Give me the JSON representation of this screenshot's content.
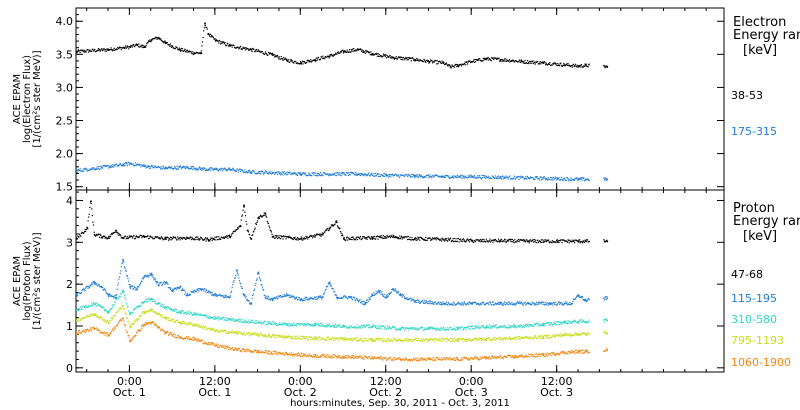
{
  "chart_data": {
    "type": "scatter",
    "xlabel": "hours:minutes, Sep. 30, 2011 - Oct. 3, 2011",
    "x_tick_times": [
      "0:00",
      "12:00",
      "0:00",
      "12:00",
      "0:00",
      "12:00"
    ],
    "x_tick_dates": [
      "Oct. 1",
      "Oct. 1",
      "Oct. 2",
      "Oct. 2",
      "Oct. 3",
      "Oct. 3"
    ],
    "x_tick_hours": [
      0,
      12,
      24,
      36,
      48,
      60
    ],
    "x_range_hours": [
      -7.5,
      83.5
    ],
    "panels": [
      {
        "name": "electron",
        "ylabel": [
          "ACE EPAM",
          "log(Electron Flux)",
          "[1/(cm²s ster MeV)]"
        ],
        "ylim": [
          1.45,
          4.2
        ],
        "yticks": [
          1.5,
          2.0,
          2.5,
          3.0,
          3.5,
          4.0
        ],
        "ytick_labels": [
          "1.5",
          "2.0",
          "2.5",
          "3.0",
          "3.5",
          "4.0"
        ],
        "legend_title": [
          "Electron",
          "Energy ran"
        ],
        "legend_unit": "[keV]",
        "series": [
          {
            "name": "38-53",
            "color": "#000000",
            "points": [
              [
                -7.5,
                3.55
              ],
              [
                -3,
                3.58
              ],
              [
                0,
                3.62
              ],
              [
                1,
                3.65
              ],
              [
                2,
                3.62
              ],
              [
                3,
                3.73
              ],
              [
                4,
                3.76
              ],
              [
                5,
                3.68
              ],
              [
                7,
                3.58
              ],
              [
                9,
                3.53
              ],
              [
                10,
                3.53
              ],
              [
                10.5,
                3.98
              ],
              [
                11,
                3.82
              ],
              [
                12,
                3.72
              ],
              [
                14,
                3.64
              ],
              [
                17,
                3.58
              ],
              [
                20,
                3.5
              ],
              [
                22,
                3.42
              ],
              [
                24,
                3.38
              ],
              [
                26,
                3.43
              ],
              [
                28,
                3.48
              ],
              [
                30,
                3.55
              ],
              [
                32,
                3.58
              ],
              [
                34,
                3.52
              ],
              [
                37,
                3.46
              ],
              [
                40,
                3.43
              ],
              [
                42,
                3.4
              ],
              [
                44,
                3.38
              ],
              [
                45,
                3.32
              ],
              [
                46,
                3.34
              ],
              [
                48,
                3.4
              ],
              [
                50,
                3.44
              ],
              [
                52,
                3.43
              ],
              [
                55,
                3.4
              ],
              [
                58,
                3.38
              ],
              [
                61,
                3.35
              ],
              [
                63,
                3.33
              ],
              [
                64,
                3.34
              ],
              [
                67,
                3.32
              ]
            ]
          },
          {
            "name": "175-315",
            "color": "#1f7bd6",
            "points": [
              [
                -7.5,
                1.75
              ],
              [
                -4,
                1.8
              ],
              [
                -1,
                1.84
              ],
              [
                0,
                1.86
              ],
              [
                2,
                1.82
              ],
              [
                5,
                1.79
              ],
              [
                8,
                1.8
              ],
              [
                11,
                1.77
              ],
              [
                14,
                1.77
              ],
              [
                17,
                1.73
              ],
              [
                20,
                1.72
              ],
              [
                24,
                1.7
              ],
              [
                28,
                1.7
              ],
              [
                32,
                1.7
              ],
              [
                36,
                1.68
              ],
              [
                40,
                1.67
              ],
              [
                44,
                1.66
              ],
              [
                48,
                1.66
              ],
              [
                52,
                1.65
              ],
              [
                56,
                1.64
              ],
              [
                60,
                1.63
              ],
              [
                63,
                1.62
              ],
              [
                64,
                1.62
              ],
              [
                67,
                1.62
              ]
            ]
          }
        ]
      },
      {
        "name": "proton",
        "ylabel": [
          "ACE EPAM",
          "log(Proton Flux)",
          "[1/(cm²s ster MeV)]"
        ],
        "ylim": [
          -0.1,
          4.25
        ],
        "yticks": [
          0,
          1,
          2,
          3,
          4
        ],
        "ytick_labels": [
          "0",
          "1",
          "2",
          "3",
          "4"
        ],
        "legend_title": [
          "Proton",
          "Energy ran"
        ],
        "legend_unit": "[keV]",
        "series": [
          {
            "name": "47-68",
            "color": "#000000",
            "points": [
              [
                -7.5,
                3.1
              ],
              [
                -6,
                3.35
              ],
              [
                -5.5,
                4.0
              ],
              [
                -5,
                3.2
              ],
              [
                -3,
                3.12
              ],
              [
                -2,
                3.3
              ],
              [
                -1,
                3.12
              ],
              [
                2,
                3.15
              ],
              [
                5,
                3.1
              ],
              [
                8,
                3.12
              ],
              [
                11,
                3.08
              ],
              [
                14,
                3.15
              ],
              [
                15.5,
                3.4
              ],
              [
                16,
                3.9
              ],
              [
                16.5,
                3.3
              ],
              [
                17,
                3.1
              ],
              [
                18,
                3.6
              ],
              [
                19,
                3.7
              ],
              [
                20,
                3.15
              ],
              [
                24,
                3.1
              ],
              [
                27,
                3.2
              ],
              [
                28,
                3.35
              ],
              [
                29,
                3.5
              ],
              [
                30,
                3.1
              ],
              [
                34,
                3.12
              ],
              [
                37,
                3.15
              ],
              [
                40,
                3.1
              ],
              [
                44,
                3.08
              ],
              [
                48,
                3.05
              ],
              [
                52,
                3.05
              ],
              [
                56,
                3.04
              ],
              [
                60,
                3.04
              ],
              [
                63,
                3.04
              ],
              [
                64,
                3.04
              ],
              [
                67,
                3.04
              ]
            ]
          },
          {
            "name": "115-195",
            "color": "#1f7bd6",
            "points": [
              [
                -7.5,
                1.75
              ],
              [
                -5,
                2.05
              ],
              [
                -4,
                1.95
              ],
              [
                -3,
                1.75
              ],
              [
                -2,
                1.7
              ],
              [
                -1,
                2.6
              ],
              [
                0,
                1.95
              ],
              [
                1,
                1.9
              ],
              [
                2,
                2.2
              ],
              [
                3,
                2.25
              ],
              [
                4,
                2.0
              ],
              [
                5,
                2.05
              ],
              [
                6,
                1.85
              ],
              [
                7,
                1.95
              ],
              [
                8,
                1.75
              ],
              [
                10,
                1.9
              ],
              [
                12,
                1.75
              ],
              [
                14,
                1.7
              ],
              [
                15,
                2.35
              ],
              [
                16,
                1.75
              ],
              [
                17,
                1.55
              ],
              [
                18,
                2.3
              ],
              [
                19,
                1.7
              ],
              [
                20,
                1.65
              ],
              [
                22,
                1.75
              ],
              [
                24,
                1.65
              ],
              [
                27,
                1.7
              ],
              [
                28,
                2.05
              ],
              [
                29,
                1.7
              ],
              [
                31,
                1.7
              ],
              [
                33,
                1.55
              ],
              [
                34,
                1.75
              ],
              [
                35,
                1.85
              ],
              [
                36,
                1.7
              ],
              [
                37,
                1.9
              ],
              [
                38,
                1.75
              ],
              [
                40,
                1.6
              ],
              [
                44,
                1.55
              ],
              [
                48,
                1.55
              ],
              [
                52,
                1.55
              ],
              [
                56,
                1.55
              ],
              [
                59,
                1.55
              ],
              [
                62,
                1.55
              ],
              [
                63,
                1.75
              ],
              [
                64,
                1.62
              ],
              [
                67,
                1.68
              ]
            ]
          },
          {
            "name": "310-580",
            "color": "#2fd6c6",
            "points": [
              [
                -7.5,
                1.4
              ],
              [
                -5,
                1.55
              ],
              [
                -3,
                1.35
              ],
              [
                -1,
                1.85
              ],
              [
                0,
                1.3
              ],
              [
                2,
                1.6
              ],
              [
                3,
                1.65
              ],
              [
                5,
                1.45
              ],
              [
                7,
                1.35
              ],
              [
                9,
                1.3
              ],
              [
                12,
                1.2
              ],
              [
                15,
                1.15
              ],
              [
                18,
                1.1
              ],
              [
                22,
                1.05
              ],
              [
                26,
                1.05
              ],
              [
                30,
                1.0
              ],
              [
                34,
                1.0
              ],
              [
                38,
                0.95
              ],
              [
                42,
                0.95
              ],
              [
                46,
                0.95
              ],
              [
                50,
                1.0
              ],
              [
                54,
                1.0
              ],
              [
                58,
                1.05
              ],
              [
                61,
                1.1
              ],
              [
                63,
                1.12
              ],
              [
                64,
                1.12
              ],
              [
                67,
                1.15
              ]
            ]
          },
          {
            "name": "795-1193",
            "color": "#c8dc1a",
            "points": [
              [
                -7.5,
                1.15
              ],
              [
                -5,
                1.3
              ],
              [
                -3,
                1.1
              ],
              [
                -1,
                1.5
              ],
              [
                0,
                1.0
              ],
              [
                2,
                1.35
              ],
              [
                3,
                1.4
              ],
              [
                5,
                1.2
              ],
              [
                7,
                1.1
              ],
              [
                9,
                1.05
              ],
              [
                12,
                0.9
              ],
              [
                15,
                0.85
              ],
              [
                18,
                0.8
              ],
              [
                22,
                0.75
              ],
              [
                26,
                0.72
              ],
              [
                30,
                0.7
              ],
              [
                34,
                0.68
              ],
              [
                38,
                0.68
              ],
              [
                42,
                0.68
              ],
              [
                46,
                0.68
              ],
              [
                50,
                0.7
              ],
              [
                54,
                0.72
              ],
              [
                58,
                0.75
              ],
              [
                61,
                0.8
              ],
              [
                63,
                0.82
              ],
              [
                64,
                0.82
              ],
              [
                67,
                0.85
              ]
            ]
          },
          {
            "name": "1060-1900",
            "color": "#f0860f",
            "points": [
              [
                -7.5,
                0.85
              ],
              [
                -5,
                0.95
              ],
              [
                -3,
                0.8
              ],
              [
                -1,
                1.2
              ],
              [
                0,
                0.65
              ],
              [
                2,
                1.05
              ],
              [
                3,
                1.1
              ],
              [
                5,
                0.85
              ],
              [
                7,
                0.75
              ],
              [
                9,
                0.7
              ],
              [
                12,
                0.55
              ],
              [
                15,
                0.45
              ],
              [
                18,
                0.4
              ],
              [
                22,
                0.35
              ],
              [
                26,
                0.3
              ],
              [
                30,
                0.28
              ],
              [
                34,
                0.25
              ],
              [
                38,
                0.22
              ],
              [
                42,
                0.22
              ],
              [
                46,
                0.22
              ],
              [
                50,
                0.25
              ],
              [
                54,
                0.28
              ],
              [
                58,
                0.32
              ],
              [
                61,
                0.38
              ],
              [
                63,
                0.4
              ],
              [
                64,
                0.4
              ],
              [
                67,
                0.45
              ]
            ]
          }
        ]
      }
    ]
  }
}
